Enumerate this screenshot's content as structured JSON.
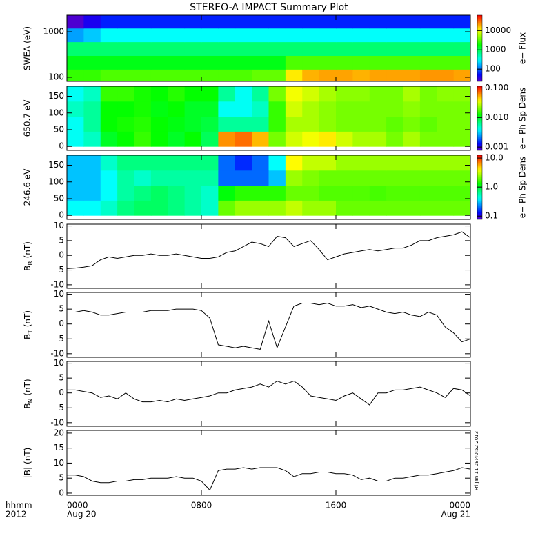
{
  "title": "STEREO-A IMPACT Summary Plot",
  "x_axis": {
    "xlim": [
      0,
      24
    ],
    "label": "hhmm",
    "year": "2012",
    "ticks": [
      {
        "value": 0,
        "label": "0000",
        "date": "Aug 20"
      },
      {
        "value": 8,
        "label": "0800"
      },
      {
        "value": 16,
        "label": "1600"
      },
      {
        "value": 24,
        "label": "0000",
        "date": "Aug 21"
      }
    ]
  },
  "stamp": "Fri Jan 11 08:40:52 2013",
  "chart_data": [
    {
      "type": "heatmap",
      "ylabel": "SWEA (eV)",
      "ylog": true,
      "ylim": [
        81,
        2310
      ],
      "yticks": [
        100,
        1000
      ],
      "colorbar_label": "e− Flux",
      "clog": true,
      "clim": [
        23,
        63000
      ],
      "cticks": [
        100,
        1000,
        10000
      ],
      "x_edges": [
        0,
        1,
        2,
        3,
        4,
        5,
        6,
        7,
        8,
        9,
        10,
        11,
        12,
        13,
        14,
        15,
        16,
        17,
        18,
        19,
        20,
        21,
        22,
        23,
        24
      ],
      "y_edges": [
        81,
        150,
        300,
        600,
        1200,
        2310
      ],
      "z": [
        [
          2500,
          2500,
          3000,
          3000,
          3000,
          3000,
          3000,
          3000,
          3000,
          3000,
          3000,
          3500,
          3500,
          12000,
          18000,
          20000,
          20000,
          18000,
          20000,
          20000,
          20000,
          22000,
          22000,
          20000
        ],
        [
          1500,
          1500,
          1500,
          1500,
          1500,
          1500,
          1500,
          1500,
          1500,
          1500,
          1500,
          1500,
          1500,
          3000,
          3000,
          3000,
          3000,
          3000,
          3000,
          3000,
          3000,
          3000,
          3000,
          3000
        ],
        [
          800,
          800,
          800,
          800,
          800,
          800,
          800,
          800,
          800,
          800,
          800,
          800,
          800,
          800,
          800,
          800,
          800,
          800,
          800,
          800,
          800,
          800,
          800,
          800
        ],
        [
          150,
          200,
          300,
          300,
          300,
          300,
          300,
          300,
          300,
          300,
          300,
          300,
          300,
          300,
          300,
          300,
          300,
          300,
          300,
          300,
          300,
          300,
          300,
          300
        ],
        [
          25,
          40,
          60,
          60,
          60,
          60,
          60,
          60,
          60,
          60,
          60,
          60,
          60,
          60,
          60,
          60,
          60,
          60,
          60,
          60,
          60,
          60,
          60,
          60
        ]
      ]
    },
    {
      "type": "heatmap",
      "ylabel": "650.7 eV",
      "ylog": false,
      "ylim": [
        -12,
        180
      ],
      "yticks": [
        0,
        50,
        100,
        150
      ],
      "colorbar_label": "e− Ph Sp Dens",
      "clog": true,
      "clim": [
        0.00077,
        0.114
      ],
      "cticks": [
        0.001,
        {
          "value": 0.01,
          "label": "0.010"
        },
        {
          "value": 0.1,
          "label": "0.100"
        }
      ],
      "x_edges": [
        0,
        1,
        2,
        3,
        4,
        5,
        6,
        7,
        8,
        9,
        10,
        11,
        12,
        13,
        14,
        15,
        16,
        17,
        18,
        19,
        20,
        21,
        22,
        23,
        24
      ],
      "y_edges": [
        0,
        45,
        90,
        135,
        180
      ],
      "z": [
        [
          0.004,
          0.005,
          0.01,
          0.012,
          0.015,
          0.012,
          0.01,
          0.012,
          0.008,
          0.06,
          0.07,
          0.05,
          0.02,
          0.03,
          0.035,
          0.04,
          0.03,
          0.025,
          0.025,
          0.02,
          0.025,
          0.02,
          0.02,
          0.02
        ],
        [
          0.004,
          0.006,
          0.012,
          0.013,
          0.014,
          0.012,
          0.011,
          0.01,
          0.009,
          0.006,
          0.006,
          0.006,
          0.015,
          0.025,
          0.025,
          0.022,
          0.02,
          0.02,
          0.02,
          0.018,
          0.02,
          0.018,
          0.02,
          0.02
        ],
        [
          0.005,
          0.006,
          0.012,
          0.012,
          0.013,
          0.011,
          0.012,
          0.01,
          0.01,
          0.004,
          0.004,
          0.005,
          0.015,
          0.03,
          0.025,
          0.022,
          0.02,
          0.02,
          0.02,
          0.02,
          0.022,
          0.02,
          0.02,
          0.02
        ],
        [
          0.004,
          0.005,
          0.015,
          0.015,
          0.013,
          0.012,
          0.014,
          0.012,
          0.012,
          0.006,
          0.004,
          0.006,
          0.02,
          0.035,
          0.03,
          0.025,
          0.022,
          0.022,
          0.02,
          0.02,
          0.025,
          0.02,
          0.022,
          0.022
        ]
      ]
    },
    {
      "type": "heatmap",
      "ylabel": "246.6 eV",
      "ylog": false,
      "ylim": [
        -12,
        180
      ],
      "yticks": [
        0,
        50,
        100,
        150
      ],
      "colorbar_label": "e− Ph Sp Dens",
      "clog": true,
      "clim": [
        0.077,
        12.5
      ],
      "cticks": [
        0.1,
        {
          "value": 1,
          "label": "1.0"
        },
        {
          "value": 10,
          "label": "10.0"
        }
      ],
      "x_edges": [
        0,
        1,
        2,
        3,
        4,
        5,
        6,
        7,
        8,
        9,
        10,
        11,
        12,
        13,
        14,
        15,
        16,
        17,
        18,
        19,
        20,
        21,
        22,
        23,
        24
      ],
      "y_edges": [
        0,
        45,
        90,
        135,
        180
      ],
      "z": [
        [
          0.4,
          0.4,
          0.5,
          0.7,
          0.8,
          0.8,
          0.7,
          0.6,
          0.5,
          2,
          2.5,
          2.5,
          2.5,
          3,
          2.5,
          2.5,
          2,
          2,
          2,
          2,
          2,
          2,
          2,
          2
        ],
        [
          0.3,
          0.3,
          0.4,
          0.6,
          0.7,
          0.8,
          0.7,
          0.6,
          0.5,
          1.2,
          1.5,
          1.5,
          1.5,
          2,
          2,
          1.8,
          1.8,
          1.8,
          1.7,
          1.8,
          1.8,
          1.8,
          1.8,
          1.8
        ],
        [
          0.3,
          0.3,
          0.4,
          0.6,
          0.5,
          0.6,
          0.6,
          0.6,
          0.6,
          0.2,
          0.2,
          0.2,
          0.3,
          2.5,
          2.2,
          2,
          2,
          2,
          2,
          2,
          2,
          2,
          2,
          2
        ],
        [
          0.3,
          0.3,
          0.5,
          0.7,
          0.7,
          0.7,
          0.7,
          0.7,
          0.7,
          0.2,
          0.15,
          0.2,
          0.4,
          4,
          3,
          3,
          2.5,
          2.5,
          2.5,
          2.5,
          2.5,
          2.5,
          2.5,
          2.5
        ]
      ]
    },
    {
      "type": "line",
      "ylabel": "B",
      "ylabel_sub": "R",
      "ylabel_unit": "(nT)",
      "ylim": [
        -11.2,
        10.6
      ],
      "yticks": [
        -10,
        -5,
        0,
        5,
        10
      ],
      "color": "#000000",
      "x": [
        0,
        0.5,
        1,
        1.5,
        2,
        2.5,
        3,
        3.5,
        4,
        4.5,
        5,
        5.5,
        6,
        6.5,
        7,
        7.5,
        8,
        8.5,
        9,
        9.5,
        10,
        10.5,
        11,
        11.5,
        12,
        12.5,
        13,
        13.5,
        14,
        14.5,
        15,
        15.5,
        16,
        16.5,
        17,
        17.5,
        18,
        18.5,
        19,
        19.5,
        20,
        20.5,
        21,
        21.5,
        22,
        22.5,
        23,
        23.5,
        24
      ],
      "values": [
        -4.5,
        -4.3,
        -4,
        -3.5,
        -1.5,
        -0.5,
        -1,
        -0.5,
        0,
        0,
        0.5,
        0,
        0,
        0.5,
        0,
        -0.5,
        -1,
        -1,
        -0.5,
        1,
        1.5,
        3,
        4.5,
        4,
        3,
        6.5,
        6,
        3,
        4,
        5,
        2,
        -1.5,
        -0.5,
        0.5,
        1,
        1.5,
        2,
        1.5,
        2,
        2.5,
        2.5,
        3.5,
        5,
        5,
        6,
        6.5,
        7,
        8,
        6
      ]
    },
    {
      "type": "line",
      "ylabel": "B",
      "ylabel_sub": "T",
      "ylabel_unit": "(nT)",
      "ylim": [
        -11.2,
        10.6
      ],
      "yticks": [
        -10,
        -5,
        0,
        5,
        10
      ],
      "color": "#000000",
      "x": [
        0,
        0.5,
        1,
        1.5,
        2,
        2.5,
        3,
        3.5,
        4,
        4.5,
        5,
        5.5,
        6,
        6.5,
        7,
        7.5,
        8,
        8.5,
        9,
        9.5,
        10,
        10.5,
        11,
        11.5,
        12,
        12.5,
        13,
        13.5,
        14,
        14.5,
        15,
        15.5,
        16,
        16.5,
        17,
        17.5,
        18,
        18.5,
        19,
        19.5,
        20,
        20.5,
        21,
        21.5,
        22,
        22.5,
        23,
        23.5,
        24
      ],
      "values": [
        4,
        4,
        4.5,
        4,
        3,
        3,
        3.5,
        4,
        4,
        4,
        4.5,
        4.5,
        4.5,
        5,
        5,
        5,
        4.5,
        2,
        -7,
        -7.5,
        -8,
        -7.5,
        -8,
        -8.5,
        1,
        -8,
        -1,
        6,
        7,
        7,
        6.5,
        7,
        6,
        6,
        6.5,
        5.5,
        6,
        5,
        4,
        3.5,
        4,
        3,
        2.5,
        4,
        3,
        -1,
        -3,
        -6,
        -5
      ]
    },
    {
      "type": "line",
      "ylabel": "B",
      "ylabel_sub": "N",
      "ylabel_unit": "(nT)",
      "ylim": [
        -11.2,
        10.6
      ],
      "yticks": [
        -10,
        -5,
        0,
        5,
        10
      ],
      "color": "#000000",
      "x": [
        0,
        0.5,
        1,
        1.5,
        2,
        2.5,
        3,
        3.5,
        4,
        4.5,
        5,
        5.5,
        6,
        6.5,
        7,
        7.5,
        8,
        8.5,
        9,
        9.5,
        10,
        10.5,
        11,
        11.5,
        12,
        12.5,
        13,
        13.5,
        14,
        14.5,
        15,
        15.5,
        16,
        16.5,
        17,
        17.5,
        18,
        18.5,
        19,
        19.5,
        20,
        20.5,
        21,
        21.5,
        22,
        22.5,
        23,
        23.5,
        24
      ],
      "values": [
        1,
        1,
        0.5,
        0,
        -1.5,
        -1,
        -2,
        0,
        -2,
        -3,
        -3,
        -2.5,
        -3,
        -2,
        -2.5,
        -2,
        -1.5,
        -1,
        0,
        0,
        1,
        1.5,
        2,
        3,
        2,
        4,
        3,
        4,
        2,
        -1,
        -1.5,
        -2,
        -2.5,
        -1,
        0,
        -2,
        -4,
        0,
        0,
        1,
        1,
        1.5,
        2,
        1,
        0,
        -1.5,
        1.5,
        1,
        -1
      ]
    },
    {
      "type": "line",
      "ylabel": "|B|",
      "ylabel_unit": "(nT)",
      "ylim": [
        -0.7,
        20.9
      ],
      "yticks": [
        0,
        5,
        10,
        15,
        20
      ],
      "color": "#000000",
      "x": [
        0,
        0.5,
        1,
        1.5,
        2,
        2.5,
        3,
        3.5,
        4,
        4.5,
        5,
        5.5,
        6,
        6.5,
        7,
        7.5,
        8,
        8.5,
        9,
        9.5,
        10,
        10.5,
        11,
        11.5,
        12,
        12.5,
        13,
        13.5,
        14,
        14.5,
        15,
        15.5,
        16,
        16.5,
        17,
        17.5,
        18,
        18.5,
        19,
        19.5,
        20,
        20.5,
        21,
        21.5,
        22,
        22.5,
        23,
        23.5,
        24
      ],
      "values": [
        6,
        6,
        5.5,
        4,
        3.5,
        3.5,
        4,
        4,
        4.5,
        4.5,
        5,
        5,
        5,
        5.5,
        5,
        5,
        4,
        1,
        7.5,
        8,
        8,
        8.5,
        8,
        8.5,
        8.5,
        8.5,
        7.5,
        5.5,
        6.5,
        6.5,
        7,
        7,
        6.5,
        6.5,
        6,
        4.5,
        5,
        4,
        4,
        5,
        5,
        5.5,
        6,
        6,
        6.5,
        7,
        7.5,
        8.5,
        8
      ]
    }
  ]
}
